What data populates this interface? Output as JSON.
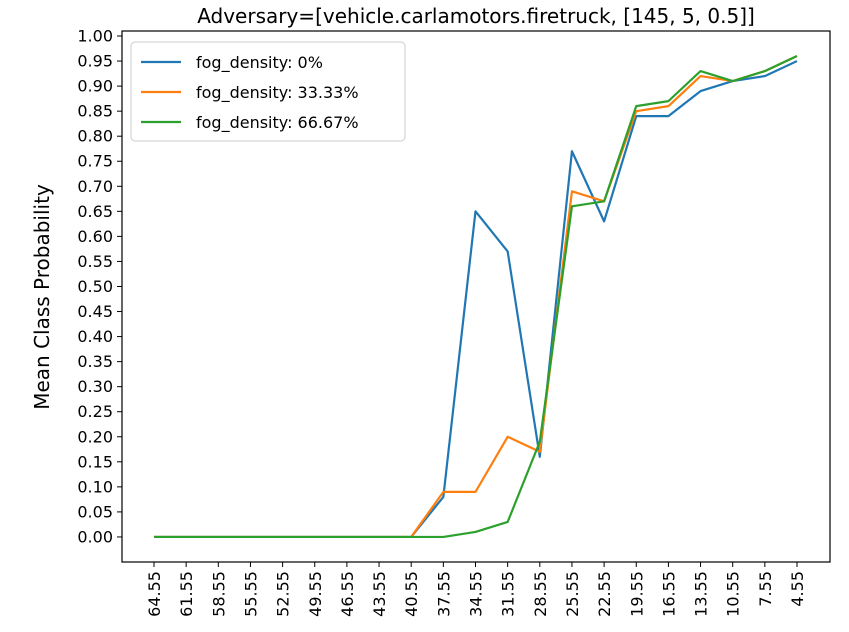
{
  "chart_data": {
    "type": "line",
    "title": "Adversary=[vehicle.carlamotors.firetruck, [145, 5, 0.5]]",
    "xlabel": "",
    "ylabel": "Mean Class Probability",
    "categories": [
      "64.55",
      "61.55",
      "58.55",
      "55.55",
      "52.55",
      "49.55",
      "46.55",
      "43.55",
      "40.55",
      "37.55",
      "34.55",
      "31.55",
      "28.55",
      "25.55",
      "22.55",
      "19.55",
      "16.55",
      "13.55",
      "10.55",
      "7.55",
      "4.55"
    ],
    "ylim": [
      -0.05,
      1.01
    ],
    "yticks": [
      "0.00",
      "0.05",
      "0.10",
      "0.15",
      "0.20",
      "0.25",
      "0.30",
      "0.35",
      "0.40",
      "0.45",
      "0.50",
      "0.55",
      "0.60",
      "0.65",
      "0.70",
      "0.75",
      "0.80",
      "0.85",
      "0.90",
      "0.95",
      "1.00"
    ],
    "legend_position": "top-left",
    "grid": false,
    "series": [
      {
        "name": "fog_density: 0%",
        "color": "#1f77b4",
        "values": [
          0,
          0,
          0,
          0,
          0,
          0,
          0,
          0,
          0,
          0.08,
          0.65,
          0.57,
          0.16,
          0.77,
          0.63,
          0.84,
          0.84,
          0.89,
          0.91,
          0.92,
          0.95
        ]
      },
      {
        "name": "fog_density: 33.33%",
        "color": "#ff7f0e",
        "values": [
          0,
          0,
          0,
          0,
          0,
          0,
          0,
          0,
          0,
          0.09,
          0.09,
          0.2,
          0.17,
          0.69,
          0.67,
          0.85,
          0.86,
          0.92,
          0.91,
          0.93,
          0.96
        ]
      },
      {
        "name": "fog_density: 66.67%",
        "color": "#2ca02c",
        "values": [
          0,
          0,
          0,
          0,
          0,
          0,
          0,
          0,
          0,
          0,
          0.01,
          0.03,
          0.19,
          0.66,
          0.67,
          0.86,
          0.87,
          0.93,
          0.91,
          0.93,
          0.96
        ]
      }
    ]
  }
}
